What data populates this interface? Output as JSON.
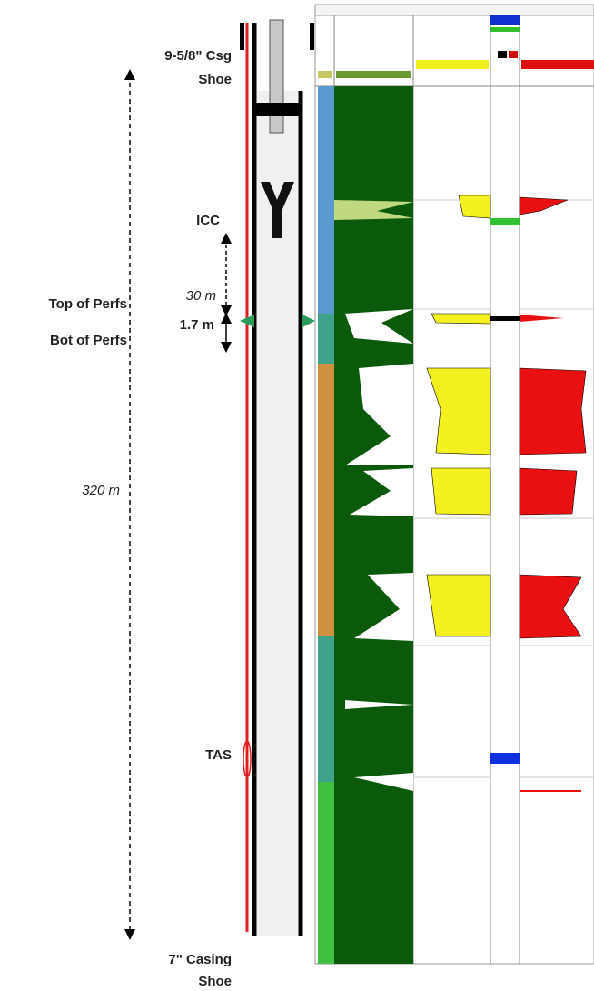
{
  "annotations": {
    "csg_shoe_top": [
      "9-5/8\" Csg",
      "Shoe"
    ],
    "icc": "ICC",
    "interval_30": "30 m",
    "top_perfs": "Top of Perfs",
    "interval_1_7": "1.7 m",
    "bot_perfs": "Bot of Perfs",
    "total_320": "320 m",
    "tas": "TAS",
    "csg_shoe_bottom": [
      "7\" Casing",
      "Shoe"
    ]
  }
}
